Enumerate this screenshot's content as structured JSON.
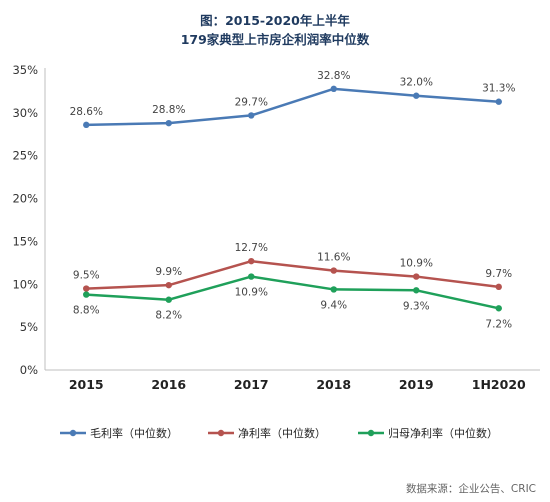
{
  "chart_data": {
    "type": "line",
    "title": "图：2015-2020年上半年",
    "subtitle": "179家典型上市房企利润率中位数",
    "categories": [
      "2015",
      "2016",
      "2017",
      "2018",
      "2019",
      "1H2020"
    ],
    "y_ticks": [
      "0%",
      "5%",
      "10%",
      "15%",
      "20%",
      "25%",
      "30%",
      "35%"
    ],
    "ylim": [
      0,
      35
    ],
    "grid": false,
    "legend_position": "bottom",
    "series": [
      {
        "name": "毛利率（中位数）",
        "color": "#4a7ab5",
        "values": [
          28.6,
          28.8,
          29.7,
          32.8,
          32.0,
          31.3
        ],
        "labels": [
          "28.6%",
          "28.8%",
          "29.7%",
          "32.8%",
          "32.0%",
          "31.3%"
        ],
        "label_position": "above"
      },
      {
        "name": "净利率（中位数）",
        "color": "#b5534f",
        "values": [
          9.5,
          9.9,
          12.7,
          11.6,
          10.9,
          9.7
        ],
        "labels": [
          "9.5%",
          "9.9%",
          "12.7%",
          "11.6%",
          "10.9%",
          "9.7%"
        ],
        "label_position": "above"
      },
      {
        "name": "归母净利率（中位数）",
        "color": "#1fa05a",
        "values": [
          8.8,
          8.2,
          10.9,
          9.4,
          9.3,
          7.2
        ],
        "labels": [
          "8.8%",
          "8.2%",
          "10.9%",
          "9.4%",
          "9.3%",
          "7.2%"
        ],
        "label_position": "below"
      }
    ],
    "source": "数据来源：企业公告、CRIC"
  }
}
